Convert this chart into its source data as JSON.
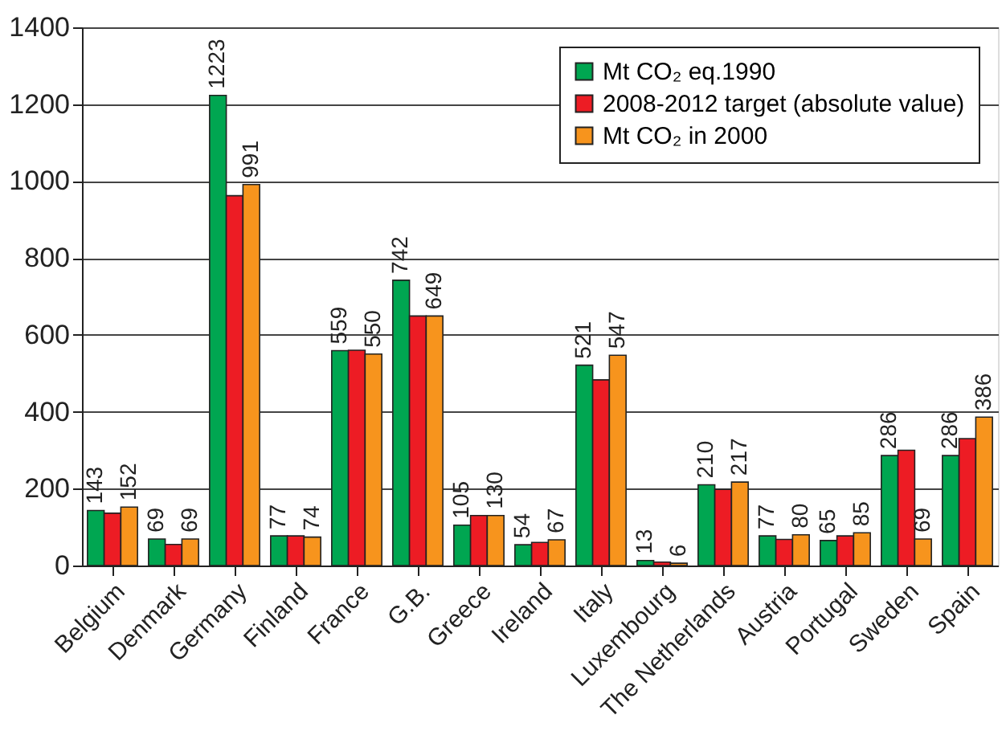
{
  "chart_data": {
    "type": "bar",
    "categories": [
      "Belgium",
      "Denmark",
      "Germany",
      "Finland",
      "France",
      "G.B.",
      "Greece",
      "Ireland",
      "Italy",
      "Luxembourg",
      "The Netherlands",
      "Austria",
      "Portugal",
      "Sweden",
      "Spain"
    ],
    "series": [
      {
        "name": "Mt CO₂ eq.1990",
        "color": "#00a651",
        "values": [
          143,
          69,
          1223,
          77,
          559,
          742,
          105,
          54,
          521,
          13,
          210,
          77,
          65,
          286,
          286
        ],
        "value_labels": [
          "143",
          "69",
          "1223",
          "77",
          "559",
          "742",
          "105",
          "54",
          "521",
          "13",
          "210",
          "77",
          "65",
          "286",
          "286"
        ]
      },
      {
        "name": "2008-2012 target (absolute value)",
        "color": "#ed1c24",
        "values": [
          136,
          55,
          962,
          77,
          560,
          649,
          130,
          60,
          483,
          9,
          198,
          68,
          77,
          300,
          330
        ]
      },
      {
        "name": "Mt CO₂ in 2000",
        "color": "#f7941d",
        "values": [
          152,
          69,
          991,
          74,
          550,
          649,
          130,
          67,
          547,
          6,
          217,
          80,
          85,
          69,
          386
        ],
        "value_labels": [
          "152",
          "69",
          "991",
          "74",
          "550",
          "649",
          "130",
          "67",
          "547",
          "6",
          "217",
          "80",
          "85",
          "69",
          "386"
        ]
      }
    ],
    "ylim": [
      0,
      1400
    ],
    "yticks": [
      0,
      200,
      400,
      600,
      800,
      1000,
      1200,
      1400
    ],
    "grid": "y",
    "legend": "top right"
  }
}
